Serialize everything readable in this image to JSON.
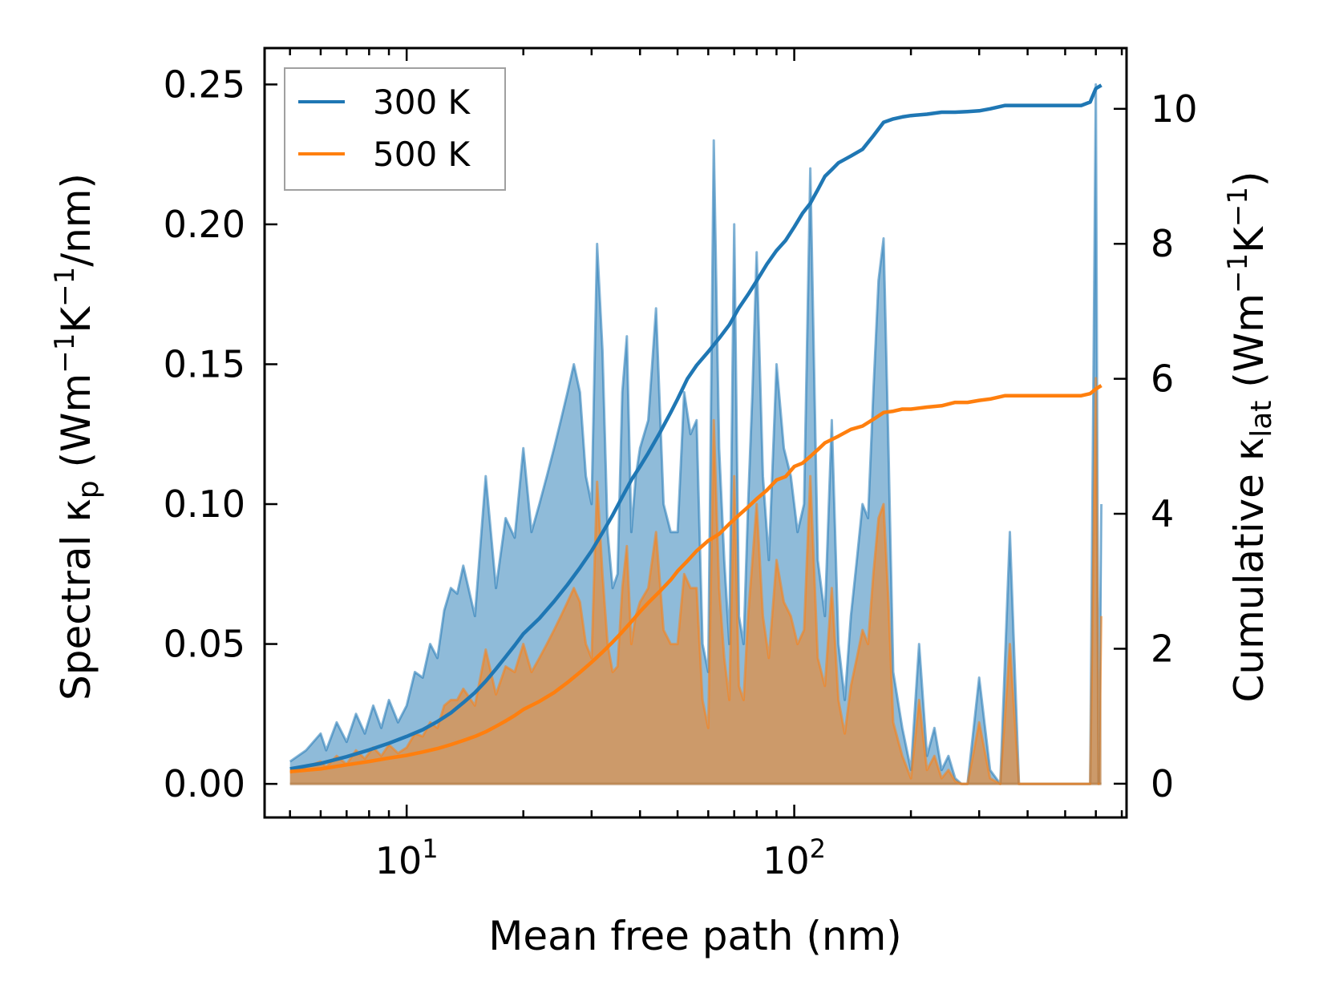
{
  "colors": {
    "series_300": "#1f77b4",
    "series_500": "#ff7f0e",
    "fill_300": "#1f77b4",
    "fill_500": "#ff7f0e",
    "fill_overlap": "#c4956a"
  },
  "chart_data": {
    "type": "area",
    "title": "",
    "xlabel": "Mean free path (nm)",
    "ylabel_left_main": "Spectral κ",
    "ylabel_left_sub": "p",
    "ylabel_left_units_open": " (Wm",
    "ylabel_left_exp1": "−1",
    "ylabel_left_mid": "K",
    "ylabel_left_exp2": "−1",
    "ylabel_left_units_close": "/nm)",
    "ylabel_right_main": "Cumulative κ",
    "ylabel_right_sub": "lat",
    "ylabel_right_units_open": " (Wm",
    "ylabel_right_exp1": "−1",
    "ylabel_right_mid": "K",
    "ylabel_right_exp2": "−1",
    "ylabel_right_units_close": ")",
    "xscale": "log",
    "xlim": [
      4.3,
      720
    ],
    "ylim_left": [
      -0.012,
      0.263
    ],
    "ylim_right": [
      -0.5,
      10.9
    ],
    "x_ticks": [
      {
        "value": 10,
        "base": "10",
        "exp": "1"
      },
      {
        "value": 100,
        "base": "10",
        "exp": "2"
      }
    ],
    "y_ticks_left": [
      {
        "value": 0.0,
        "label": "0.00"
      },
      {
        "value": 0.05,
        "label": "0.05"
      },
      {
        "value": 0.1,
        "label": "0.10"
      },
      {
        "value": 0.15,
        "label": "0.15"
      },
      {
        "value": 0.2,
        "label": "0.20"
      },
      {
        "value": 0.25,
        "label": "0.25"
      }
    ],
    "y_ticks_right": [
      {
        "value": 0,
        "label": "0"
      },
      {
        "value": 2,
        "label": "2"
      },
      {
        "value": 4,
        "label": "4"
      },
      {
        "value": 6,
        "label": "6"
      },
      {
        "value": 8,
        "label": "8"
      },
      {
        "value": 10,
        "label": "10"
      }
    ],
    "legend": {
      "position": "upper-left",
      "entries": [
        {
          "label": "300 K",
          "series": "300 K"
        },
        {
          "label": "500 K",
          "series": "500 K"
        }
      ]
    },
    "series": [
      {
        "name": "300 K",
        "role": "spectral",
        "axis": "left",
        "x": [
          5.0,
          5.5,
          6.0,
          6.2,
          6.6,
          7.0,
          7.4,
          7.8,
          8.2,
          8.6,
          9.0,
          9.5,
          10.0,
          10.5,
          11.0,
          11.5,
          12.0,
          12.5,
          13.0,
          13.5,
          14.0,
          15.0,
          16.0,
          17.0,
          18.0,
          19.0,
          20.0,
          21.0,
          22.0,
          23.0,
          24.0,
          25.0,
          26.0,
          27.0,
          28.0,
          29.0,
          30.0,
          31.0,
          32.0,
          33.0,
          34.0,
          35.0,
          36.0,
          37.0,
          38.0,
          39.0,
          40.0,
          42.0,
          44.0,
          46.0,
          48.0,
          50.0,
          52.0,
          54.0,
          56.0,
          58.0,
          60.0,
          62.0,
          64.0,
          66.0,
          68.0,
          70.0,
          72.0,
          74.0,
          76.0,
          78.0,
          80.0,
          83.0,
          86.0,
          90.0,
          94.0,
          98.0,
          102.0,
          106.0,
          110.0,
          115.0,
          120.0,
          125.0,
          130.0,
          135.0,
          140.0,
          145.0,
          150.0,
          155.0,
          160.0,
          165.0,
          170.0,
          175.0,
          180.0,
          190.0,
          200.0,
          210.0,
          220.0,
          230.0,
          240.0,
          250.0,
          260.0,
          270.0,
          280.0,
          300.0,
          320.0,
          340.0,
          360.0,
          380.0,
          400.0,
          450.0,
          500.0,
          550.0,
          580.0,
          600.0,
          610.0,
          620.0
        ],
        "values": [
          0.008,
          0.012,
          0.018,
          0.012,
          0.022,
          0.015,
          0.025,
          0.018,
          0.028,
          0.02,
          0.03,
          0.022,
          0.028,
          0.04,
          0.038,
          0.05,
          0.045,
          0.062,
          0.07,
          0.068,
          0.078,
          0.06,
          0.11,
          0.07,
          0.095,
          0.088,
          0.12,
          0.09,
          0.1,
          0.11,
          0.12,
          0.13,
          0.14,
          0.15,
          0.14,
          0.11,
          0.1,
          0.193,
          0.155,
          0.09,
          0.07,
          0.075,
          0.14,
          0.16,
          0.09,
          0.11,
          0.12,
          0.13,
          0.17,
          0.1,
          0.09,
          0.09,
          0.14,
          0.125,
          0.13,
          0.05,
          0.04,
          0.23,
          0.12,
          0.08,
          0.05,
          0.2,
          0.06,
          0.05,
          0.1,
          0.14,
          0.19,
          0.11,
          0.08,
          0.15,
          0.12,
          0.11,
          0.09,
          0.1,
          0.22,
          0.08,
          0.06,
          0.13,
          0.05,
          0.03,
          0.06,
          0.08,
          0.1,
          0.095,
          0.14,
          0.18,
          0.195,
          0.12,
          0.04,
          0.02,
          0.005,
          0.05,
          0.01,
          0.02,
          0.005,
          0.01,
          0.002,
          0.0,
          0.0,
          0.038,
          0.005,
          0.0,
          0.09,
          0.0,
          0.0,
          0.0,
          0.0,
          0.0,
          0.0,
          0.25,
          0.0,
          0.1
        ]
      },
      {
        "name": "500 K",
        "role": "spectral",
        "axis": "left",
        "x": [
          5.0,
          5.5,
          6.0,
          6.2,
          6.6,
          7.0,
          7.4,
          7.8,
          8.2,
          8.6,
          9.0,
          9.5,
          10.0,
          10.5,
          11.0,
          11.5,
          12.0,
          12.5,
          13.0,
          13.5,
          14.0,
          15.0,
          16.0,
          17.0,
          18.0,
          19.0,
          20.0,
          21.0,
          22.0,
          23.0,
          24.0,
          25.0,
          26.0,
          27.0,
          28.0,
          29.0,
          30.0,
          31.0,
          32.0,
          33.0,
          34.0,
          35.0,
          36.0,
          37.0,
          38.0,
          39.0,
          40.0,
          42.0,
          44.0,
          46.0,
          48.0,
          50.0,
          52.0,
          54.0,
          56.0,
          58.0,
          60.0,
          62.0,
          64.0,
          66.0,
          68.0,
          70.0,
          72.0,
          74.0,
          76.0,
          78.0,
          80.0,
          83.0,
          86.0,
          90.0,
          94.0,
          98.0,
          102.0,
          106.0,
          110.0,
          115.0,
          120.0,
          125.0,
          130.0,
          135.0,
          140.0,
          145.0,
          150.0,
          155.0,
          160.0,
          165.0,
          170.0,
          175.0,
          180.0,
          190.0,
          200.0,
          210.0,
          220.0,
          230.0,
          240.0,
          250.0,
          260.0,
          270.0,
          280.0,
          300.0,
          320.0,
          340.0,
          360.0,
          380.0,
          400.0,
          450.0,
          500.0,
          550.0,
          580.0,
          600.0,
          610.0,
          620.0
        ],
        "values": [
          0.004,
          0.006,
          0.008,
          0.006,
          0.01,
          0.007,
          0.012,
          0.009,
          0.013,
          0.01,
          0.014,
          0.011,
          0.013,
          0.018,
          0.017,
          0.022,
          0.02,
          0.028,
          0.03,
          0.03,
          0.034,
          0.028,
          0.048,
          0.032,
          0.042,
          0.04,
          0.05,
          0.04,
          0.045,
          0.05,
          0.055,
          0.06,
          0.065,
          0.07,
          0.065,
          0.05,
          0.045,
          0.108,
          0.075,
          0.05,
          0.04,
          0.042,
          0.07,
          0.085,
          0.05,
          0.06,
          0.065,
          0.07,
          0.09,
          0.055,
          0.05,
          0.05,
          0.075,
          0.07,
          0.07,
          0.03,
          0.02,
          0.13,
          0.07,
          0.045,
          0.03,
          0.11,
          0.035,
          0.03,
          0.06,
          0.08,
          0.1,
          0.06,
          0.045,
          0.08,
          0.065,
          0.06,
          0.05,
          0.055,
          0.11,
          0.045,
          0.035,
          0.07,
          0.03,
          0.018,
          0.035,
          0.045,
          0.055,
          0.05,
          0.075,
          0.095,
          0.1,
          0.065,
          0.022,
          0.01,
          0.002,
          0.03,
          0.005,
          0.01,
          0.002,
          0.005,
          0.001,
          0.0,
          0.0,
          0.022,
          0.002,
          0.0,
          0.05,
          0.0,
          0.0,
          0.0,
          0.0,
          0.0,
          0.0,
          0.145,
          0.0,
          0.06
        ]
      },
      {
        "name": "300 K",
        "role": "cumulative",
        "axis": "right",
        "x": [
          5.0,
          6.0,
          7.0,
          8.0,
          9.0,
          10.0,
          11.0,
          12.0,
          13.0,
          14.0,
          15.0,
          16.0,
          17.0,
          18.0,
          19.0,
          20.0,
          22.0,
          24.0,
          26.0,
          28.0,
          30.0,
          32.0,
          34.0,
          36.0,
          38.0,
          40.0,
          42.0,
          45.0,
          48.0,
          50.0,
          53.0,
          56.0,
          60.0,
          64.0,
          68.0,
          72.0,
          76.0,
          80.0,
          85.0,
          90.0,
          95.0,
          100.0,
          105.0,
          110.0,
          115.0,
          120.0,
          125.0,
          130.0,
          140.0,
          150.0,
          160.0,
          170.0,
          180.0,
          190.0,
          200.0,
          220.0,
          240.0,
          260.0,
          280.0,
          300.0,
          320.0,
          350.0,
          400.0,
          450.0,
          500.0,
          550.0,
          580.0,
          600.0,
          620.0
        ],
        "values": [
          0.22,
          0.3,
          0.4,
          0.5,
          0.6,
          0.7,
          0.8,
          0.92,
          1.05,
          1.2,
          1.35,
          1.52,
          1.7,
          1.88,
          2.05,
          2.22,
          2.45,
          2.7,
          2.95,
          3.2,
          3.45,
          3.72,
          3.98,
          4.25,
          4.5,
          4.7,
          4.9,
          5.2,
          5.5,
          5.7,
          6.0,
          6.2,
          6.4,
          6.6,
          6.8,
          7.05,
          7.25,
          7.45,
          7.7,
          7.9,
          8.05,
          8.25,
          8.45,
          8.6,
          8.8,
          9.0,
          9.1,
          9.2,
          9.3,
          9.4,
          9.6,
          9.8,
          9.85,
          9.88,
          9.9,
          9.92,
          9.95,
          9.95,
          9.96,
          9.97,
          10.0,
          10.05,
          10.05,
          10.05,
          10.05,
          10.05,
          10.1,
          10.3,
          10.35
        ]
      },
      {
        "name": "500 K",
        "role": "cumulative",
        "axis": "right",
        "x": [
          5.0,
          6.0,
          7.0,
          8.0,
          9.0,
          10.0,
          11.0,
          12.0,
          13.0,
          14.0,
          15.0,
          16.0,
          17.0,
          18.0,
          19.0,
          20.0,
          22.0,
          24.0,
          26.0,
          28.0,
          30.0,
          32.0,
          34.0,
          36.0,
          38.0,
          40.0,
          42.0,
          45.0,
          48.0,
          50.0,
          53.0,
          56.0,
          60.0,
          64.0,
          68.0,
          72.0,
          76.0,
          80.0,
          85.0,
          90.0,
          95.0,
          100.0,
          105.0,
          110.0,
          115.0,
          120.0,
          125.0,
          130.0,
          140.0,
          150.0,
          160.0,
          170.0,
          180.0,
          190.0,
          200.0,
          220.0,
          240.0,
          260.0,
          280.0,
          300.0,
          320.0,
          350.0,
          400.0,
          450.0,
          500.0,
          550.0,
          580.0,
          600.0,
          620.0
        ],
        "values": [
          0.18,
          0.22,
          0.28,
          0.33,
          0.38,
          0.42,
          0.47,
          0.52,
          0.58,
          0.64,
          0.7,
          0.77,
          0.85,
          0.93,
          1.01,
          1.1,
          1.22,
          1.35,
          1.5,
          1.65,
          1.8,
          1.95,
          2.1,
          2.25,
          2.4,
          2.55,
          2.68,
          2.85,
          3.02,
          3.15,
          3.3,
          3.45,
          3.6,
          3.7,
          3.85,
          3.98,
          4.1,
          4.22,
          4.35,
          4.5,
          4.55,
          4.7,
          4.75,
          4.85,
          4.95,
          5.05,
          5.1,
          5.15,
          5.25,
          5.3,
          5.4,
          5.5,
          5.52,
          5.55,
          5.55,
          5.58,
          5.6,
          5.65,
          5.65,
          5.68,
          5.7,
          5.75,
          5.75,
          5.75,
          5.75,
          5.75,
          5.78,
          5.85,
          5.9
        ]
      }
    ]
  }
}
